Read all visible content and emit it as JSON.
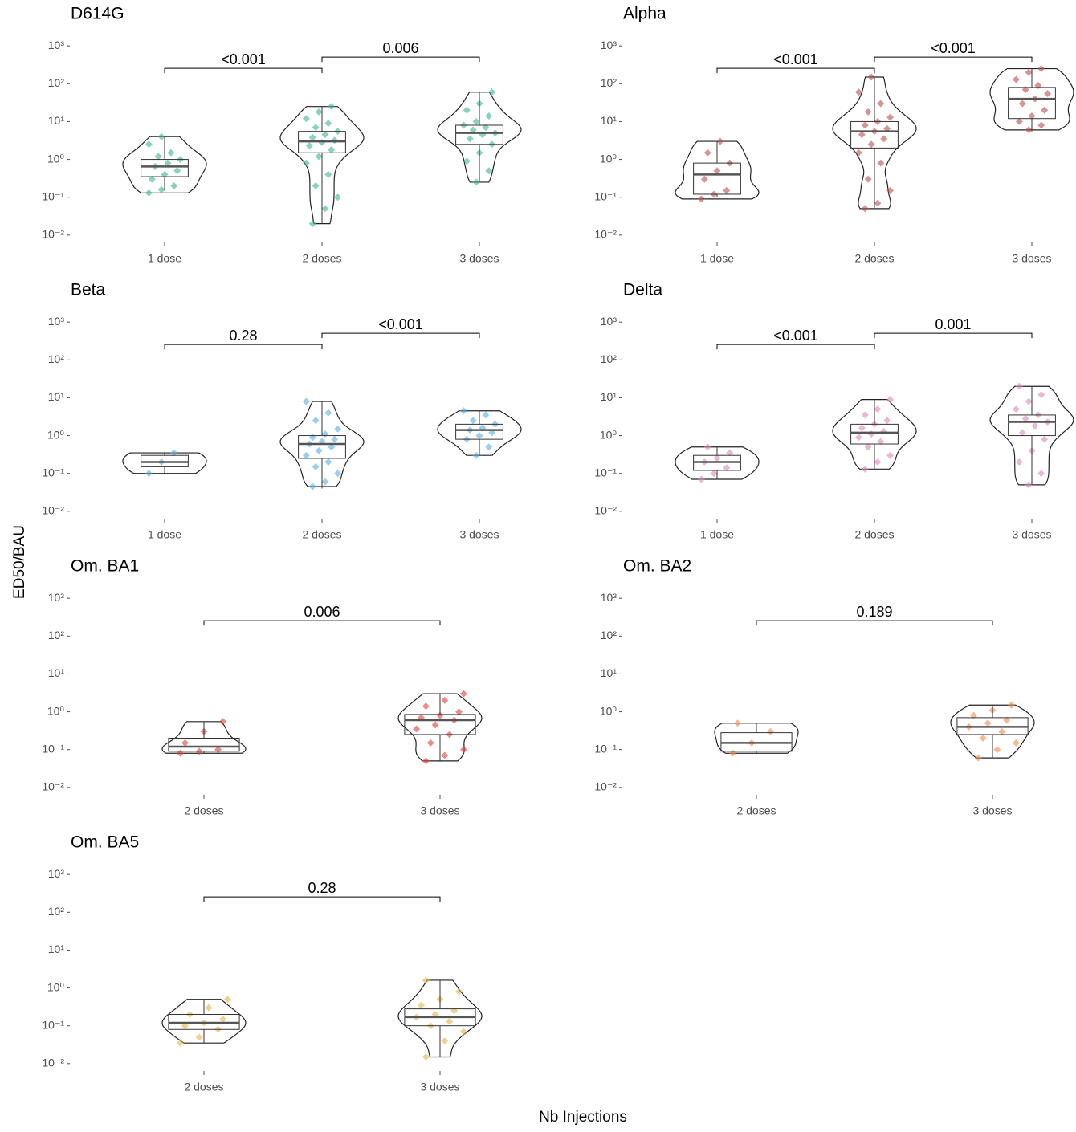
{
  "ylabel": "ED50/BAU",
  "xlabel": "Nb Injections",
  "chart_data": [
    {
      "type": "violin",
      "title": "D614G",
      "log": true,
      "color": "#3bb58f",
      "categories": [
        "1 dose",
        "2 doses",
        "3 doses"
      ],
      "ylim": [
        0.005,
        2000
      ],
      "yticks": [
        {
          "value": 0.01,
          "label": "10⁻²"
        },
        {
          "value": 0.1,
          "label": "10⁻¹"
        },
        {
          "value": 1,
          "label": "10⁰"
        },
        {
          "value": 10,
          "label": "10¹"
        },
        {
          "value": 100,
          "label": "10²"
        },
        {
          "value": 1000,
          "label": "10³"
        }
      ],
      "comparisons": [
        "<0.001",
        "0.006"
      ],
      "groups": [
        {
          "box": {
            "min": 0.15,
            "q1": 0.35,
            "median": 0.65,
            "q3": 1.0,
            "max": 4
          },
          "points": [
            0.13,
            0.16,
            0.2,
            0.3,
            0.4,
            0.5,
            0.65,
            0.8,
            1.0,
            1.2,
            1.5,
            2.5,
            4
          ]
        },
        {
          "box": {
            "min": 0.02,
            "q1": 1.5,
            "median": 3,
            "q3": 5.5,
            "max": 25
          },
          "points": [
            0.02,
            0.05,
            0.1,
            0.2,
            0.4,
            0.8,
            1.2,
            1.8,
            2.3,
            2.8,
            3.2,
            3.8,
            4.5,
            5.5,
            7,
            9,
            12,
            18,
            25
          ]
        },
        {
          "box": {
            "min": 0.25,
            "q1": 2.5,
            "median": 5,
            "q3": 8,
            "max": 60
          },
          "points": [
            0.25,
            0.5,
            0.9,
            1.5,
            2.5,
            3.5,
            4.5,
            5,
            6,
            7,
            8,
            10,
            14,
            20,
            30,
            60
          ]
        }
      ]
    },
    {
      "type": "violin",
      "title": "Alpha",
      "log": true,
      "color": "#b5504f",
      "categories": [
        "1 dose",
        "2 doses",
        "3 doses"
      ],
      "ylim": [
        0.005,
        2000
      ],
      "yticks": [
        {
          "value": 0.01,
          "label": "10⁻²"
        },
        {
          "value": 0.1,
          "label": "10⁻¹"
        },
        {
          "value": 1,
          "label": "10⁰"
        },
        {
          "value": 10,
          "label": "10¹"
        },
        {
          "value": 100,
          "label": "10²"
        },
        {
          "value": 1000,
          "label": "10³"
        }
      ],
      "comparisons": [
        "<0.001",
        "<0.001"
      ],
      "groups": [
        {
          "box": {
            "min": 0.1,
            "q1": 0.12,
            "median": 0.4,
            "q3": 0.8,
            "max": 3
          },
          "points": [
            0.09,
            0.12,
            0.15,
            0.3,
            0.5,
            0.8,
            1.5,
            3
          ]
        },
        {
          "box": {
            "min": 0.05,
            "q1": 2,
            "median": 5.5,
            "q3": 10,
            "max": 150
          },
          "points": [
            0.05,
            0.07,
            0.15,
            0.3,
            0.8,
            1.5,
            2.5,
            3.5,
            4.5,
            5.5,
            6.5,
            8,
            10,
            13,
            18,
            30,
            60,
            150
          ]
        },
        {
          "box": {
            "min": 5.5,
            "q1": 12,
            "median": 40,
            "q3": 80,
            "max": 250
          },
          "points": [
            6,
            8,
            10,
            14,
            20,
            30,
            40,
            55,
            70,
            90,
            130,
            200,
            250
          ]
        }
      ]
    },
    {
      "type": "violin",
      "title": "Beta",
      "log": true,
      "color": "#5aaee0",
      "categories": [
        "1 dose",
        "2 doses",
        "3 doses"
      ],
      "ylim": [
        0.005,
        2000
      ],
      "yticks": [
        {
          "value": 0.01,
          "label": "10⁻²"
        },
        {
          "value": 0.1,
          "label": "10⁻¹"
        },
        {
          "value": 1,
          "label": "10⁰"
        },
        {
          "value": 10,
          "label": "10¹"
        },
        {
          "value": 100,
          "label": "10²"
        },
        {
          "value": 1000,
          "label": "10³"
        }
      ],
      "comparisons": [
        "0.28",
        "<0.001"
      ],
      "groups": [
        {
          "box": {
            "min": 0.1,
            "q1": 0.15,
            "median": 0.2,
            "q3": 0.3,
            "max": 0.35
          },
          "points": [
            0.1,
            0.2,
            0.35
          ]
        },
        {
          "box": {
            "min": 0.04,
            "q1": 0.25,
            "median": 0.6,
            "q3": 1.0,
            "max": 8
          },
          "points": [
            0.045,
            0.06,
            0.1,
            0.15,
            0.2,
            0.3,
            0.4,
            0.5,
            0.6,
            0.7,
            0.8,
            0.9,
            1.1,
            1.5,
            2.5,
            4,
            8
          ]
        },
        {
          "box": {
            "min": 0.3,
            "q1": 0.8,
            "median": 1.4,
            "q3": 2,
            "max": 4.5
          },
          "points": [
            0.3,
            0.5,
            0.8,
            1,
            1.2,
            1.4,
            1.6,
            2,
            2.5,
            3.5,
            4.5
          ]
        }
      ]
    },
    {
      "type": "violin",
      "title": "Delta",
      "log": true,
      "color": "#d98ab8",
      "categories": [
        "1 dose",
        "2 doses",
        "3 doses"
      ],
      "ylim": [
        0.005,
        2000
      ],
      "yticks": [
        {
          "value": 0.01,
          "label": "10⁻²"
        },
        {
          "value": 0.1,
          "label": "10⁻¹"
        },
        {
          "value": 1,
          "label": "10⁰"
        },
        {
          "value": 10,
          "label": "10¹"
        },
        {
          "value": 100,
          "label": "10²"
        },
        {
          "value": 1000,
          "label": "10³"
        }
      ],
      "comparisons": [
        "<0.001",
        "0.001"
      ],
      "groups": [
        {
          "box": {
            "min": 0.07,
            "q1": 0.12,
            "median": 0.2,
            "q3": 0.3,
            "max": 0.5
          },
          "points": [
            0.07,
            0.1,
            0.14,
            0.2,
            0.25,
            0.35,
            0.5
          ]
        },
        {
          "box": {
            "min": 0.13,
            "q1": 0.6,
            "median": 1.2,
            "q3": 2,
            "max": 9
          },
          "points": [
            0.13,
            0.2,
            0.3,
            0.5,
            0.7,
            0.9,
            1.1,
            1.3,
            1.6,
            2,
            2.5,
            3.5,
            5,
            9
          ]
        },
        {
          "box": {
            "min": 0.05,
            "q1": 1,
            "median": 2.3,
            "q3": 3.5,
            "max": 20
          },
          "points": [
            0.05,
            0.1,
            0.2,
            0.4,
            0.8,
            1.2,
            1.8,
            2.3,
            2.8,
            3.5,
            5,
            8,
            12,
            20
          ]
        }
      ]
    },
    {
      "type": "violin",
      "title": "Om. BA1",
      "log": true,
      "color": "#e0403a",
      "categories": [
        "2 doses",
        "3 doses"
      ],
      "ylim": [
        0.005,
        2000
      ],
      "yticks": [
        {
          "value": 0.01,
          "label": "10⁻²"
        },
        {
          "value": 0.1,
          "label": "10⁻¹"
        },
        {
          "value": 1,
          "label": "10⁰"
        },
        {
          "value": 10,
          "label": "10¹"
        },
        {
          "value": 100,
          "label": "10²"
        },
        {
          "value": 1000,
          "label": "10³"
        }
      ],
      "comparisons": [
        "0.006"
      ],
      "groups": [
        {
          "box": {
            "min": 0.08,
            "q1": 0.09,
            "median": 0.12,
            "q3": 0.2,
            "max": 0.55
          },
          "points": [
            0.08,
            0.09,
            0.1,
            0.15,
            0.3,
            0.55
          ]
        },
        {
          "box": {
            "min": 0.05,
            "q1": 0.25,
            "median": 0.6,
            "q3": 0.85,
            "max": 3
          },
          "points": [
            0.05,
            0.07,
            0.1,
            0.15,
            0.25,
            0.35,
            0.45,
            0.6,
            0.7,
            0.8,
            1,
            1.4,
            2,
            3
          ]
        }
      ]
    },
    {
      "type": "violin",
      "title": "Om. BA2",
      "log": true,
      "color": "#ef8c4c",
      "categories": [
        "2 doses",
        "3 doses"
      ],
      "ylim": [
        0.005,
        2000
      ],
      "yticks": [
        {
          "value": 0.01,
          "label": "10⁻²"
        },
        {
          "value": 0.1,
          "label": "10⁻¹"
        },
        {
          "value": 1,
          "label": "10⁰"
        },
        {
          "value": 10,
          "label": "10¹"
        },
        {
          "value": 100,
          "label": "10²"
        },
        {
          "value": 1000,
          "label": "10³"
        }
      ],
      "comparisons": [
        "0.189"
      ],
      "groups": [
        {
          "box": {
            "min": 0.08,
            "q1": 0.09,
            "median": 0.15,
            "q3": 0.28,
            "max": 0.5
          },
          "points": [
            0.08,
            0.15,
            0.3,
            0.5
          ]
        },
        {
          "box": {
            "min": 0.06,
            "q1": 0.25,
            "median": 0.4,
            "q3": 0.7,
            "max": 1.5
          },
          "points": [
            0.06,
            0.1,
            0.15,
            0.2,
            0.3,
            0.4,
            0.5,
            0.6,
            0.8,
            1.1,
            1.5
          ]
        }
      ]
    },
    {
      "type": "violin",
      "title": "Om. BA5",
      "log": true,
      "color": "#e5b44a",
      "categories": [
        "2 doses",
        "3 doses"
      ],
      "ylim": [
        0.005,
        2000
      ],
      "yticks": [
        {
          "value": 0.01,
          "label": "10⁻²"
        },
        {
          "value": 0.1,
          "label": "10⁻¹"
        },
        {
          "value": 1,
          "label": "10⁰"
        },
        {
          "value": 10,
          "label": "10¹"
        },
        {
          "value": 100,
          "label": "10²"
        },
        {
          "value": 1000,
          "label": "10³"
        }
      ],
      "comparisons": [
        "0.28"
      ],
      "groups": [
        {
          "box": {
            "min": 0.035,
            "q1": 0.08,
            "median": 0.12,
            "q3": 0.2,
            "max": 0.5
          },
          "points": [
            0.035,
            0.05,
            0.08,
            0.1,
            0.12,
            0.15,
            0.2,
            0.3,
            0.5
          ]
        },
        {
          "box": {
            "min": 0.015,
            "q1": 0.1,
            "median": 0.17,
            "q3": 0.28,
            "max": 1.6
          },
          "points": [
            0.015,
            0.04,
            0.07,
            0.1,
            0.13,
            0.17,
            0.2,
            0.25,
            0.35,
            0.5,
            0.8,
            1.6
          ]
        }
      ]
    }
  ]
}
